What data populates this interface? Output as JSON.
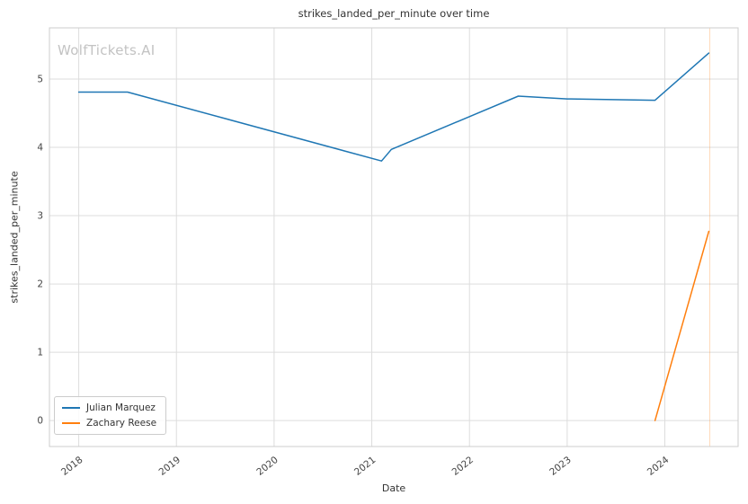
{
  "watermark": {
    "text": "WolfTickets.AI"
  },
  "chart_data": {
    "type": "line",
    "title": "strikes_landed_per_minute over time",
    "xlabel": "Date",
    "ylabel": "strikes_landed_per_minute",
    "xlim": [
      2017.7,
      2024.75
    ],
    "ylim": [
      -0.38,
      5.75
    ],
    "grid": true,
    "legend_position": "lower left",
    "x_ticks": [
      2018,
      2019,
      2020,
      2021,
      2022,
      2023,
      2024
    ],
    "y_ticks": [
      0,
      1,
      2,
      3,
      4,
      5
    ],
    "series": [
      {
        "name": "Julian Marquez",
        "color": "#1f77b4",
        "x": [
          2018.0,
          2018.5,
          2021.1,
          2021.2,
          2022.5,
          2023.0,
          2023.9,
          2024.45
        ],
        "y": [
          4.81,
          4.81,
          3.8,
          3.97,
          4.75,
          4.71,
          4.69,
          5.38
        ]
      },
      {
        "name": "Zachary Reese",
        "color": "#ff7f0e",
        "x": [
          2023.9,
          2024.45
        ],
        "y": [
          0.0,
          2.77
        ]
      }
    ],
    "annotations": [
      {
        "type": "vline",
        "x": 2024.46,
        "color": "#ff7f0e",
        "opacity": 0.35
      }
    ],
    "style": {
      "grid_color": "#dddddd",
      "spine_color": "#cccccc",
      "text_color": "#333333",
      "tick_color": "#444444",
      "watermark_color": "#c3c3c3",
      "background": "#ffffff"
    }
  }
}
